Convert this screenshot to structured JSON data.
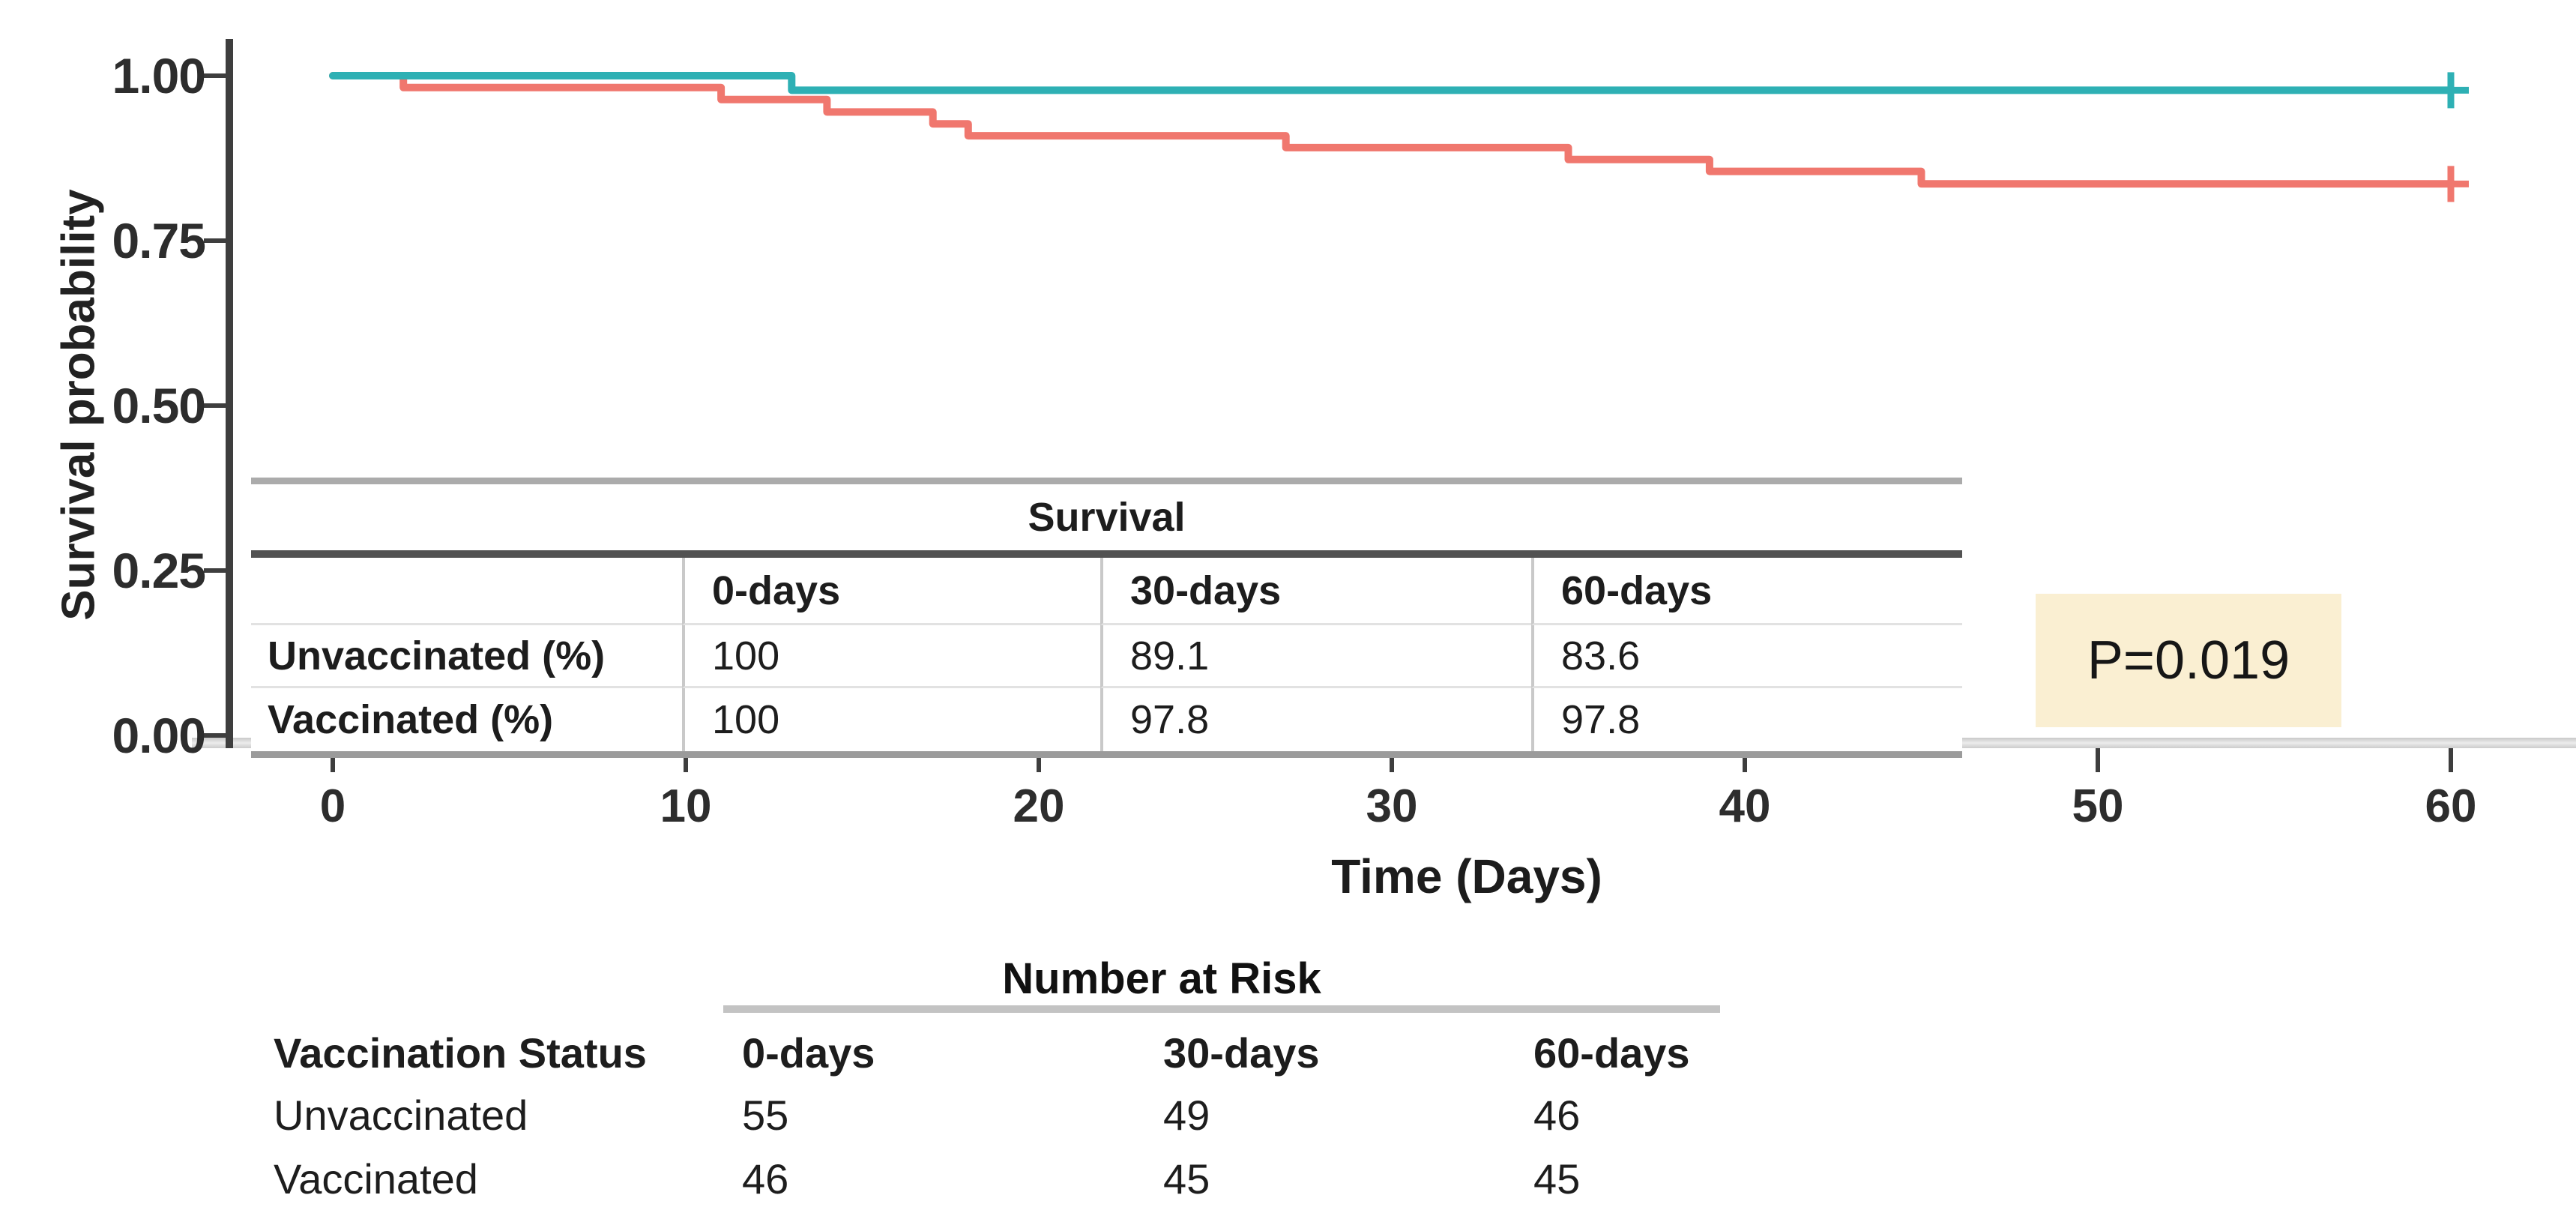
{
  "chart_data": {
    "type": "line",
    "subtype": "kaplan-meier-step",
    "title": "",
    "xlabel": "Time (Days)",
    "ylabel": "Survival probability",
    "xlim": [
      0,
      60
    ],
    "ylim": [
      0,
      1
    ],
    "grid": false,
    "x_ticks": [
      0,
      10,
      20,
      30,
      40,
      50,
      60
    ],
    "y_ticks": [
      {
        "value": 1.0,
        "label": "1.00"
      },
      {
        "value": 0.75,
        "label": "0.75"
      },
      {
        "value": 0.5,
        "label": "0.50"
      },
      {
        "value": 0.25,
        "label": "0.25"
      },
      {
        "value": 0.0,
        "label": "0.00"
      }
    ],
    "series": [
      {
        "name": "Unvaccinated",
        "color": "#F0776E",
        "points": [
          [
            0,
            1.0
          ],
          [
            2,
            1.0
          ],
          [
            2,
            0.982
          ],
          [
            11,
            0.982
          ],
          [
            11,
            0.964
          ],
          [
            14,
            0.964
          ],
          [
            14,
            0.945
          ],
          [
            17,
            0.945
          ],
          [
            17,
            0.927
          ],
          [
            18,
            0.927
          ],
          [
            18,
            0.909
          ],
          [
            27,
            0.909
          ],
          [
            27,
            0.891
          ],
          [
            35,
            0.891
          ],
          [
            35,
            0.873
          ],
          [
            39,
            0.873
          ],
          [
            39,
            0.855
          ],
          [
            45,
            0.855
          ],
          [
            45,
            0.836
          ],
          [
            60,
            0.836
          ]
        ],
        "censors": [
          {
            "x": 60,
            "y": 0.836
          }
        ]
      },
      {
        "name": "Vaccinated",
        "color": "#2EB0B4",
        "points": [
          [
            0,
            1.0
          ],
          [
            13,
            1.0
          ],
          [
            13,
            0.978
          ],
          [
            60,
            0.978
          ]
        ],
        "censors": [
          {
            "x": 60,
            "y": 0.978
          }
        ]
      }
    ]
  },
  "survival_table": {
    "title": "Survival",
    "col_headers": [
      "0-days",
      "30-days",
      "60-days"
    ],
    "rows": [
      {
        "label": "Unvaccinated (%)",
        "values": [
          "100",
          "89.1",
          "83.6"
        ]
      },
      {
        "label": "Vaccinated (%)",
        "values": [
          "100",
          "97.8",
          "97.8"
        ]
      }
    ]
  },
  "p_annotation": {
    "label": "P=0.019",
    "box_color": "#FAEFD2"
  },
  "risk_table": {
    "title": "Number at Risk",
    "col_headers": [
      "Vaccination Status",
      "0-days",
      "30-days",
      "60-days"
    ],
    "rows": [
      {
        "label": "Unvaccinated",
        "values": [
          "55",
          "49",
          "46"
        ]
      },
      {
        "label": "Vaccinated",
        "values": [
          "46",
          "45",
          "45"
        ]
      }
    ]
  }
}
